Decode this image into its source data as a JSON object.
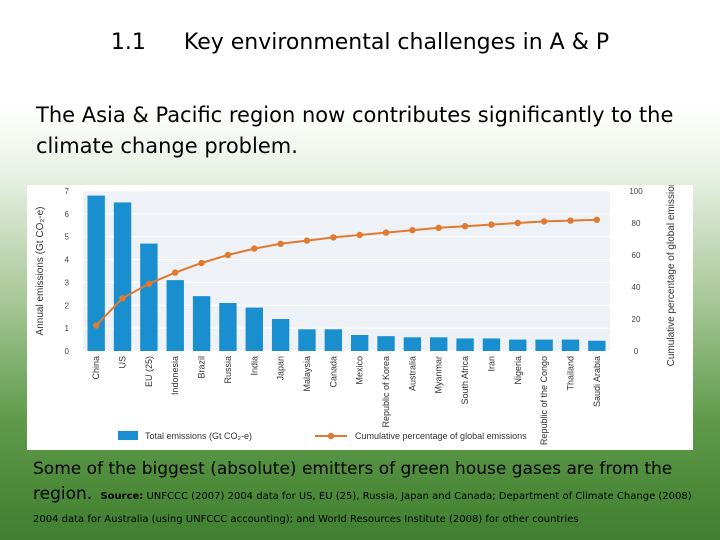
{
  "header": {
    "number": "1.1",
    "title": "Key environmental challenges in A & P"
  },
  "subtitle": "The Asia & Pacific region now contributes significantly to the climate change problem.",
  "chart_data": {
    "type": "bar",
    "categories": [
      "China",
      "US",
      "EU (25)",
      "Indonesia",
      "Brazil",
      "Russia",
      "India",
      "Japan",
      "Malaysia",
      "Canada",
      "Mexico",
      "Republic of Korea",
      "Australia",
      "Myanmar",
      "South Africa",
      "Iran",
      "Nigeria",
      "Republic of the Congo",
      "Thailand",
      "Saudi Arabia"
    ],
    "series": [
      {
        "name": "Total emissions (Gt CO₂-e)",
        "axis": "left",
        "color": "#1a8fd0",
        "values": [
          6.8,
          6.5,
          4.7,
          3.1,
          2.4,
          2.1,
          1.9,
          1.4,
          0.95,
          0.95,
          0.7,
          0.65,
          0.6,
          0.6,
          0.55,
          0.55,
          0.5,
          0.5,
          0.5,
          0.45
        ]
      },
      {
        "name": "Cumulative percentage of global emissions",
        "axis": "right",
        "color": "#e07a30",
        "values": [
          16,
          33,
          42,
          49,
          55,
          60,
          64,
          67,
          69,
          71,
          72.5,
          74,
          75.5,
          77,
          78,
          79,
          80,
          81,
          81.5,
          82
        ]
      }
    ],
    "ylabel": "Annual emissions (Gt CO₂-e)",
    "ylabel2": "Cumulative percentage of global emissions",
    "ylim": [
      0,
      7
    ],
    "y2lim": [
      0,
      100
    ],
    "yticks": [
      "0",
      "1",
      "2",
      "3",
      "4",
      "5",
      "6",
      "7"
    ],
    "y2ticks": [
      "0",
      "20",
      "40",
      "60",
      "80",
      "100"
    ],
    "grid": true,
    "legend": "bottom"
  },
  "footer": {
    "main": "Some of the biggest (absolute) emitters of green house gases are from the region.",
    "source_label": "Source:",
    "source_text": "UNFCCC (2007) 2004 data for US, EU (25), Russia, Japan and Canada; Department of Climate Change (2008) 2004 data for Australia (using UNFCCC accounting); and World Resources Institute (2008) for other countries"
  }
}
